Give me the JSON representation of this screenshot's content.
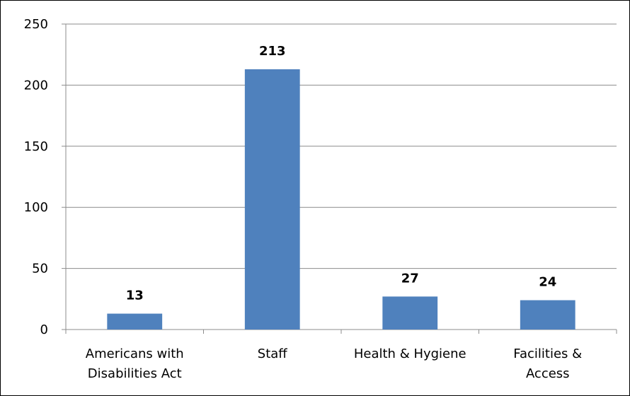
{
  "chart_data": {
    "type": "bar",
    "title": "",
    "xlabel": "",
    "ylabel": "",
    "categories": [
      [
        "Americans with",
        "Disabilities Act"
      ],
      [
        "Staff"
      ],
      [
        "Health & Hygiene"
      ],
      [
        "Facilities &",
        "Access"
      ]
    ],
    "values": [
      13,
      213,
      27,
      24
    ],
    "ylim": [
      0,
      250
    ],
    "yticks": [
      0,
      50,
      100,
      150,
      200,
      250
    ],
    "grid": true,
    "data_labels": true,
    "legend": "none",
    "colors": {
      "bar": "#4F81BD",
      "grid": "#8C8C8C",
      "axis": "#8C8C8C"
    }
  }
}
